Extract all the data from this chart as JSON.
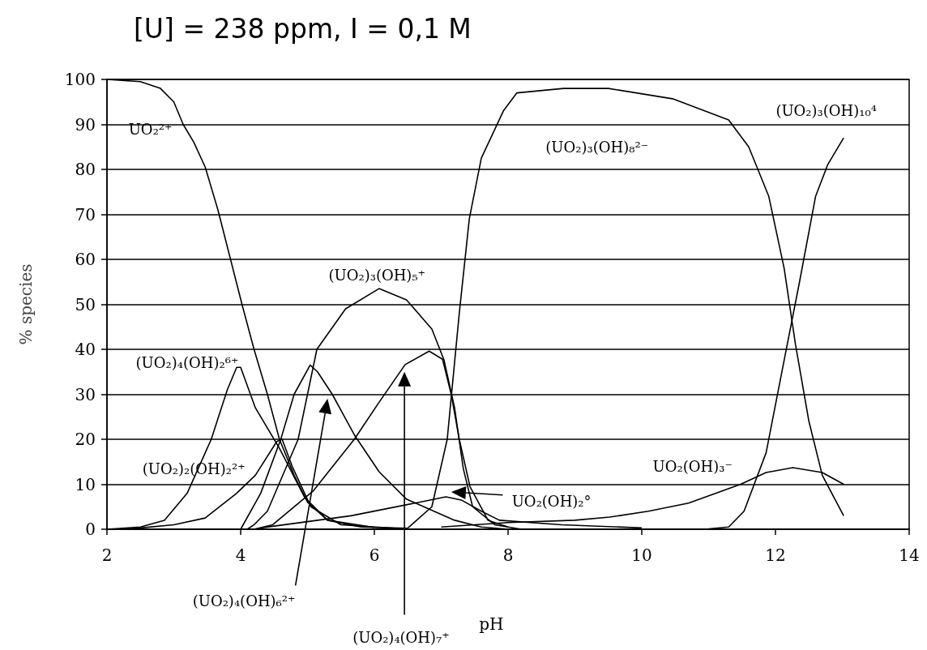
{
  "chart_data": {
    "type": "line",
    "title": "[U] = 238 ppm, I = 0,1 M",
    "xlabel": "pH",
    "ylabel": "% species",
    "xlim": [
      2,
      14
    ],
    "xticks": [
      2,
      4,
      6,
      8,
      10,
      12,
      14
    ],
    "ylim": [
      0,
      100
    ],
    "yticks": [
      0,
      10,
      20,
      30,
      40,
      50,
      60,
      70,
      80,
      90,
      100
    ],
    "grid": "y",
    "marker": "none",
    "line_style": "solid",
    "series": [
      {
        "name": "UO₂²⁺",
        "color": "#000000",
        "x": [
          2,
          2.5,
          2.8,
          3.0,
          3.14,
          3.3,
          3.47,
          3.66,
          4.02,
          4.2,
          4.4,
          4.58,
          4.8,
          5.0,
          5.3,
          5.8,
          6.5
        ],
        "values": [
          100,
          99.5,
          98,
          95,
          90,
          86,
          80.5,
          71,
          50,
          40,
          30,
          20,
          12,
          6,
          2,
          0.5,
          0.2
        ]
      },
      {
        "name": "(UO₂)₄(OH)₂⁶⁺",
        "color": "#000000",
        "x": [
          2,
          2.5,
          2.86,
          3.2,
          3.56,
          3.8,
          3.94,
          4.0,
          4.22,
          4.58,
          4.96,
          5.3,
          6
        ],
        "values": [
          0,
          0.5,
          2,
          8,
          20,
          31,
          36,
          36,
          27,
          18,
          7,
          2,
          0.4
        ]
      },
      {
        "name": "(UO₂)₂(OH)₂²⁺",
        "color": "#000000",
        "x": [
          2.3,
          2.5,
          3,
          3.47,
          3.94,
          4.22,
          4.54,
          4.62,
          4.77,
          5.05,
          5.5,
          6.3
        ],
        "values": [
          0.1,
          0.3,
          1,
          2.5,
          8,
          12,
          19.5,
          20,
          14,
          5,
          1,
          0.2
        ]
      },
      {
        "name": "(UO₂)₄(OH)₆²⁺",
        "color": "#000000",
        "x": [
          4,
          4.3,
          4.6,
          4.8,
          5.04,
          5.15,
          5.37,
          5.7,
          6.07,
          6.48,
          7.2,
          7.6,
          8
        ],
        "values": [
          0,
          8,
          20,
          30,
          36.5,
          35,
          30,
          21,
          12.8,
          6.7,
          2,
          0.5,
          0
        ]
      },
      {
        "name": "(UO₂)₃(OH)₅⁺",
        "color": "#000000",
        "x": [
          4.1,
          4.2,
          4.4,
          4.86,
          5.14,
          5.57,
          6.07,
          6.48,
          6.86,
          7.04,
          7.2,
          7.33,
          7.47,
          7.8,
          8.2
        ],
        "values": [
          0,
          1,
          4,
          20,
          40,
          49,
          53.5,
          51,
          44.5,
          37.7,
          27,
          13.5,
          5,
          1,
          0
        ]
      },
      {
        "name": "(UO₂)₄(OH)₇⁺",
        "color": "#000000",
        "x": [
          4.2,
          4.48,
          5.09,
          5.7,
          6.06,
          6.46,
          6.82,
          7.02,
          7.15,
          7.27,
          7.43,
          7.7,
          8
        ],
        "values": [
          0,
          1,
          8.6,
          20,
          28,
          36.6,
          39.6,
          37.8,
          30,
          20,
          9.5,
          2,
          0.5
        ]
      },
      {
        "name": "UO₂(OH)₂°",
        "color": "#000000",
        "x": [
          4.3,
          5.65,
          6.67,
          7.07,
          7.3,
          7.6,
          7.87,
          8.8,
          10
        ],
        "values": [
          0.3,
          3,
          6,
          7.2,
          6.5,
          4,
          2,
          1,
          0.3
        ]
      },
      {
        "name": "UO₂(OH)₃⁻",
        "color": "#000000",
        "x": [
          7,
          8,
          9,
          9.52,
          10.1,
          10.7,
          11.48,
          11.86,
          12.26,
          12.7,
          13.02
        ],
        "values": [
          0.5,
          1.5,
          2,
          2.7,
          4,
          5.8,
          10,
          12.6,
          13.7,
          12.6,
          10
        ]
      },
      {
        "name": "(UO₂)₃(OH)₈²⁻",
        "color": "#000000",
        "x": [
          6.48,
          6.86,
          7.09,
          7.27,
          7.42,
          7.6,
          7.93,
          8.13,
          8.83,
          9.5,
          10.46,
          11.3,
          11.6,
          11.9,
          12.13,
          12.3,
          12.5,
          12.7,
          13.02
        ],
        "values": [
          0,
          5,
          20,
          48,
          69,
          82.5,
          93,
          97,
          98,
          98,
          95.7,
          91,
          85,
          74,
          58,
          41,
          24,
          12,
          3
        ]
      },
      {
        "name": "(UO₂)₃(OH)₁₀⁴",
        "color": "#000000",
        "x": [
          10.5,
          11,
          11.3,
          11.53,
          11.86,
          12.13,
          12.36,
          12.6,
          12.78,
          13.02
        ],
        "values": [
          0,
          0.1,
          0.5,
          4,
          17,
          37.6,
          55,
          74,
          81,
          87
        ]
      }
    ]
  }
}
